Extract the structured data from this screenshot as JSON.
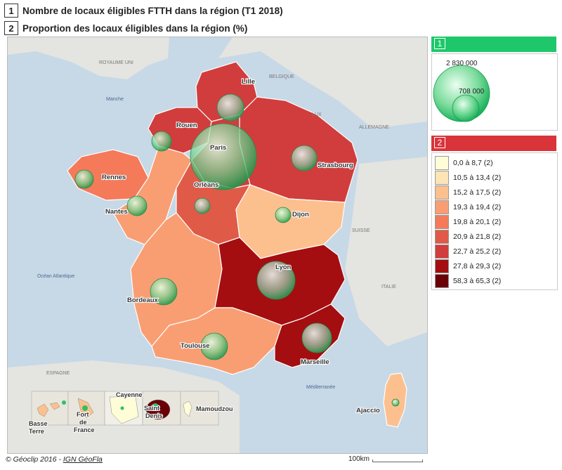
{
  "titles": {
    "t1_num": "1",
    "t1_text": "Nombre de locaux éligibles FTTH dans la région (T1 2018)",
    "t2_num": "2",
    "t2_text": "Proportion des locaux éligibles dans la région (%)"
  },
  "map_labels": {
    "royaume_uni": "ROYAUME UNI",
    "belgique": "BELGIQUE",
    "manche": "Manche",
    "lux": "LUX",
    "allemagne": "ALLEMAGNE",
    "suisse": "SUISSE",
    "italie": "ITALIE",
    "espagne": "ESPAGNE",
    "ocean": "Océan Atlantique",
    "mediterranee": "Méditerranée"
  },
  "cities": {
    "lille": "Lille",
    "rouen": "Rouen",
    "paris": "Paris",
    "strasbourg": "Strasbourg",
    "rennes": "Rennes",
    "orleans": "Orléans",
    "nantes": "Nantes",
    "dijon": "Dijon",
    "lyon": "Lyon",
    "bordeaux": "Bordeaux",
    "toulouse": "Toulouse",
    "marseille": "Marseille",
    "ajaccio": "Ajaccio"
  },
  "overseas": {
    "basse_terre_1": "Basse",
    "basse_terre_2": "Terre",
    "fort_de_france_1": "Fort",
    "fort_de_france_2": "de",
    "fort_de_france_3": "France",
    "cayenne": "Cayenne",
    "saint_denis_1": "Saint",
    "saint_denis_2": "Denis",
    "mamoudzou": "Mamoudzou"
  },
  "legend1": {
    "num": "1",
    "accent": "#1ec86a",
    "big_label": "2 830 000",
    "small_label": "708 000"
  },
  "legend2": {
    "num": "2",
    "accent": "#d8343a",
    "classes": [
      {
        "label": "0,0 à 8,7 (2)",
        "color": "#fffcd8"
      },
      {
        "label": "10,5 à 13,4 (2)",
        "color": "#fde4b5"
      },
      {
        "label": "15,2 à 17,5 (2)",
        "color": "#fcc08e"
      },
      {
        "label": "19,3 à 19,4 (2)",
        "color": "#f99e72"
      },
      {
        "label": "19,8 à 20,1 (2)",
        "color": "#f47a5a"
      },
      {
        "label": "20,9 à 21,8 (2)",
        "color": "#e05a48"
      },
      {
        "label": "22,7 à 25,2 (2)",
        "color": "#d13d3c"
      },
      {
        "label": "27,8 à 29,3 (2)",
        "color": "#a40e10"
      },
      {
        "label": "58,3 à 65,3 (2)",
        "color": "#6a0006"
      }
    ]
  },
  "footer": {
    "copyright": "© Géoclip 2016 - ",
    "link": "IGN GéoFla",
    "scale": "100km"
  }
}
